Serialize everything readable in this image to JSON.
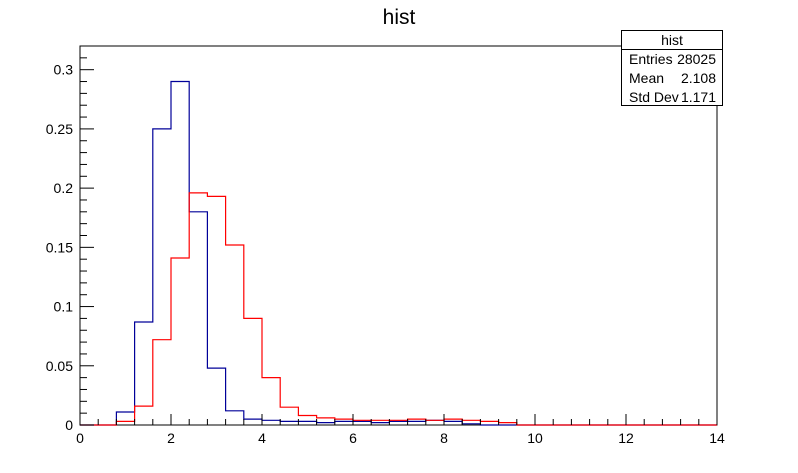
{
  "chart_data": {
    "type": "histogram",
    "title": "hist",
    "xlim": [
      0,
      14
    ],
    "ylim": [
      0,
      0.32
    ],
    "x_ticks": [
      "0",
      "2",
      "4",
      "6",
      "8",
      "10",
      "12",
      "14"
    ],
    "y_ticks": [
      "0",
      "0.05",
      "0.1",
      "0.15",
      "0.2",
      "0.25",
      "0.3"
    ],
    "bin_width": 0.4,
    "bin_start": 0,
    "series": [
      {
        "color": "#000099",
        "values": [
          0,
          0,
          0.011,
          0.087,
          0.25,
          0.29,
          0.18,
          0.048,
          0.012,
          0.005,
          0.004,
          0.003,
          0.003,
          0.002,
          0.003,
          0.003,
          0.002,
          0.003,
          0.003,
          0.004,
          0.003,
          0.001,
          0,
          0,
          0,
          0,
          0,
          0,
          0,
          0,
          0,
          0,
          0,
          0,
          0
        ]
      },
      {
        "color": "#ff0000",
        "values": [
          0,
          0,
          0.003,
          0.016,
          0.072,
          0.141,
          0.196,
          0.193,
          0.152,
          0.09,
          0.04,
          0.015,
          0.008,
          0.006,
          0.005,
          0.004,
          0.004,
          0.004,
          0.005,
          0.004,
          0.005,
          0.004,
          0.003,
          0.002,
          0,
          0,
          0,
          0,
          0,
          0,
          0,
          0,
          0,
          0,
          0
        ]
      }
    ],
    "grid": false,
    "stats_box": {
      "title": "hist",
      "rows": [
        {
          "label": "Entries",
          "value": "28025"
        },
        {
          "label": "Mean",
          "value": "2.108"
        },
        {
          "label": "Std Dev",
          "value": "1.171"
        }
      ]
    }
  }
}
